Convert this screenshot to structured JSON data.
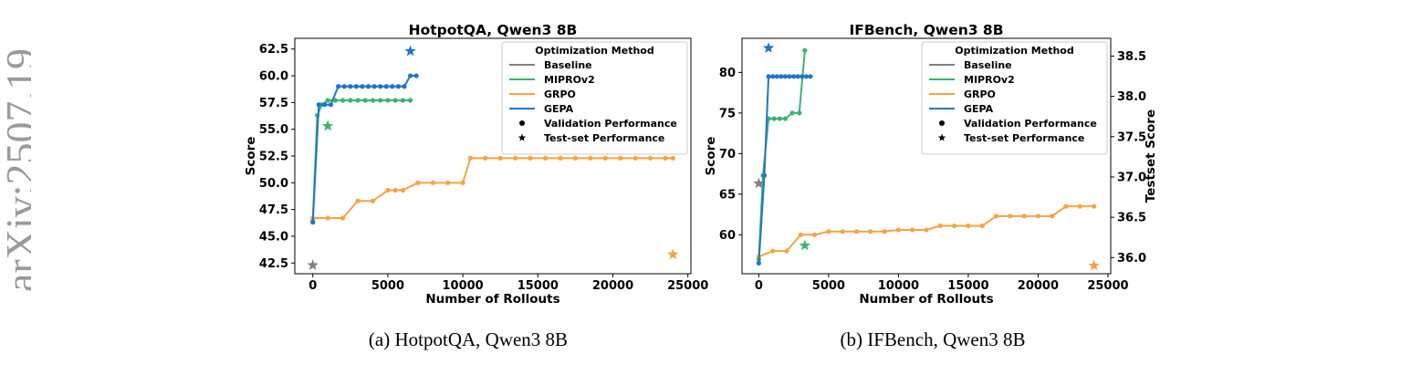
{
  "watermark_text": "arXiv:2507.19",
  "captions": [
    "(a) HotpotQA, Qwen3 8B",
    "(b) IFBench, Qwen3 8B"
  ],
  "legend": {
    "title": "Optimization Method",
    "entries": [
      {
        "label": "Baseline",
        "kind": "line",
        "color": "#808080"
      },
      {
        "label": "MIPROv2",
        "kind": "line",
        "color": "#3cb371"
      },
      {
        "label": "GRPO",
        "kind": "line",
        "color": "#f5a442"
      },
      {
        "label": "GEPA",
        "kind": "line",
        "color": "#1f77c4"
      },
      {
        "label": "Validation Performance",
        "kind": "dot",
        "color": "#000000"
      },
      {
        "label": "Test-set Performance",
        "kind": "star",
        "color": "#000000"
      }
    ]
  },
  "chart_data": [
    {
      "type": "line",
      "title": "HotpotQA, Qwen3 8B",
      "xlabel": "Number of Rollouts",
      "ylabel": "Score",
      "xlim": [
        -1200,
        25200
      ],
      "ylim": [
        41.5,
        63.5
      ],
      "xticks": [
        0,
        5000,
        10000,
        15000,
        20000,
        25000
      ],
      "yticks": [
        42.5,
        45.0,
        47.5,
        50.0,
        52.5,
        55.0,
        57.5,
        60.0,
        62.5
      ],
      "grid": false,
      "legend_position": "top-right",
      "series": [
        {
          "name": "MIPROv2",
          "color": "#3cb371",
          "x": [
            0,
            300,
            600,
            1000,
            1500,
            2000,
            2500,
            3000,
            3500,
            4000,
            4500,
            5000,
            5500,
            6000,
            6500
          ],
          "y": [
            46.5,
            56.3,
            57.3,
            57.7,
            57.7,
            57.7,
            57.7,
            57.7,
            57.7,
            57.7,
            57.7,
            57.7,
            57.7,
            57.7,
            57.7
          ]
        },
        {
          "name": "GRPO",
          "color": "#f5a442",
          "x": [
            0,
            1000,
            2000,
            3000,
            4000,
            5000,
            5500,
            6000,
            7000,
            8000,
            9000,
            10000,
            10500,
            11500,
            12500,
            13500,
            14500,
            15500,
            16500,
            17500,
            18500,
            19500,
            20500,
            21500,
            22500,
            23500,
            24000
          ],
          "y": [
            46.7,
            46.7,
            46.7,
            48.3,
            48.3,
            49.3,
            49.3,
            49.3,
            50.0,
            50.0,
            50.0,
            50.0,
            52.3,
            52.3,
            52.3,
            52.3,
            52.3,
            52.3,
            52.3,
            52.3,
            52.3,
            52.3,
            52.3,
            52.3,
            52.3,
            52.3,
            52.3
          ]
        },
        {
          "name": "GEPA",
          "color": "#1f77c4",
          "x": [
            0,
            400,
            800,
            1200,
            1700,
            2100,
            2500,
            2900,
            3300,
            3700,
            4100,
            4500,
            4900,
            5300,
            5700,
            6100,
            6500,
            6900
          ],
          "y": [
            46.3,
            57.3,
            57.3,
            57.3,
            59.0,
            59.0,
            59.0,
            59.0,
            59.0,
            59.0,
            59.0,
            59.0,
            59.0,
            59.0,
            59.0,
            59.0,
            60.0,
            60.0
          ]
        }
      ],
      "test_points": [
        {
          "name": "Baseline",
          "color": "#808080",
          "x": 0,
          "y": 42.3
        },
        {
          "name": "MIPROv2",
          "color": "#3cb371",
          "x": 1000,
          "y": 55.3
        },
        {
          "name": "GRPO",
          "color": "#f5a442",
          "x": 24000,
          "y": 43.3
        },
        {
          "name": "GEPA",
          "color": "#1f77c4",
          "x": 6500,
          "y": 62.3
        }
      ]
    },
    {
      "type": "line",
      "title": "IFBench, Qwen3 8B",
      "xlabel": "Number of Rollouts",
      "ylabel": "Score",
      "y2label": "Testset Score",
      "xlim": [
        -1200,
        25200
      ],
      "ylim": [
        55.2,
        84.2
      ],
      "y2lim": [
        35.8,
        38.72
      ],
      "xticks": [
        0,
        5000,
        10000,
        15000,
        20000,
        25000
      ],
      "yticks": [
        60,
        65,
        70,
        75,
        80
      ],
      "y2ticks": [
        36.0,
        36.5,
        37.0,
        37.5,
        38.0,
        38.5
      ],
      "grid": false,
      "legend_position": "top-right",
      "series": [
        {
          "name": "MIPROv2",
          "color": "#3cb371",
          "x": [
            0,
            300,
            700,
            1100,
            1500,
            1900,
            2400,
            2900,
            3300
          ],
          "y": [
            57.0,
            67.3,
            74.3,
            74.3,
            74.3,
            74.3,
            75.0,
            75.0,
            82.7
          ]
        },
        {
          "name": "GRPO",
          "color": "#f5a442",
          "x": [
            0,
            1000,
            2000,
            3000,
            4000,
            5000,
            6000,
            7000,
            8000,
            9000,
            10000,
            11000,
            12000,
            13000,
            14000,
            15000,
            16000,
            17000,
            18000,
            19000,
            20000,
            21000,
            22000,
            23000,
            24000
          ],
          "y": [
            57.3,
            58.0,
            58.0,
            60.0,
            60.0,
            60.4,
            60.4,
            60.4,
            60.4,
            60.4,
            60.6,
            60.6,
            60.6,
            61.1,
            61.1,
            61.1,
            61.1,
            62.3,
            62.3,
            62.3,
            62.3,
            62.3,
            63.5,
            63.5,
            63.5
          ]
        },
        {
          "name": "GEPA",
          "color": "#1f77c4",
          "x": [
            0,
            400,
            700,
            1000,
            1300,
            1600,
            1900,
            2200,
            2500,
            2800,
            3100,
            3400,
            3700
          ],
          "y": [
            56.5,
            67.3,
            79.5,
            79.5,
            79.5,
            79.5,
            79.5,
            79.5,
            79.5,
            79.5,
            79.5,
            79.5,
            79.5
          ]
        }
      ],
      "test_points": [
        {
          "name": "Baseline",
          "color": "#808080",
          "x": 0,
          "y2": 36.92
        },
        {
          "name": "MIPROv2",
          "color": "#3cb371",
          "x": 3300,
          "y2": 36.15
        },
        {
          "name": "GRPO",
          "color": "#f5a442",
          "x": 24000,
          "y2": 35.9
        },
        {
          "name": "GEPA",
          "color": "#1f77c4",
          "x": 700,
          "y2": 38.6
        }
      ]
    }
  ]
}
